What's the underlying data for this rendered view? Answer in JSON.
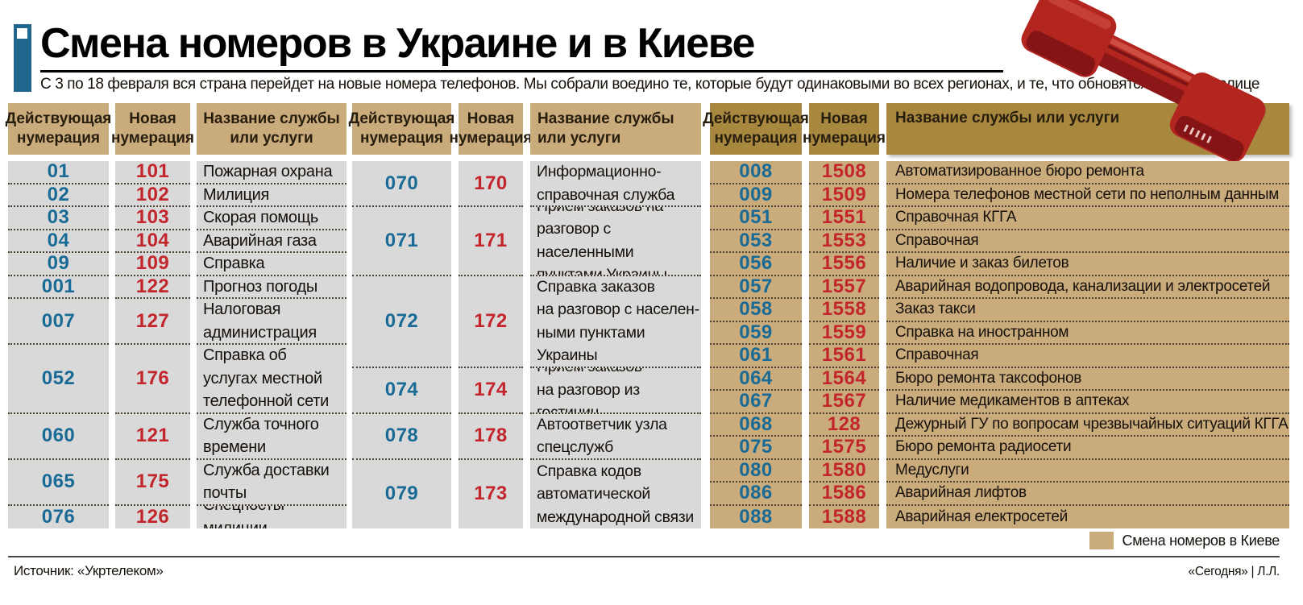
{
  "masthead": {
    "title": "Смена номеров в Украине и в Киеве",
    "subtitle": "С 3 по 18 февраля вся страна перейдет на новые номера телефонов. Мы собрали воедино те, которые будут одинаковыми во всех регионах, и те, что обновятся лишь в столице"
  },
  "column_headers": {
    "current": "Действующая\nнумерация",
    "new": "Новая\nнумерация",
    "service_two_line": "Название службы\nили услуги",
    "service": "Название службы или услуги"
  },
  "colors": {
    "accent_blue": "#1a6a96",
    "accent_red": "#c2262c",
    "tan": "#c9ab7c",
    "tan_dark": "#a8873f",
    "row_gray": "#d9d9d9",
    "marker_blue": "#20668f",
    "phone_red": "#b3251f"
  },
  "tables": [
    {
      "id": "ukraine-part-1",
      "rows": [
        {
          "old": "01",
          "new": "101",
          "service": "Пожарная охрана"
        },
        {
          "old": "02",
          "new": "102",
          "service": "Милиция"
        },
        {
          "old": "03",
          "new": "103",
          "service": "Скорая помощь"
        },
        {
          "old": "04",
          "new": "104",
          "service": "Аварийная газа"
        },
        {
          "old": "09",
          "new": "109",
          "service": "Справка"
        },
        {
          "old": "001",
          "new": "122",
          "service": "Прогноз погоды"
        },
        {
          "old": "007",
          "new": "127",
          "service": "Налоговая\nадминистрация"
        },
        {
          "old": "052",
          "new": "176",
          "service": "Справка об\nуслугах местной\nтелефонной сети"
        },
        {
          "old": "060",
          "new": "121",
          "service": "Служба точного\nвремени"
        },
        {
          "old": "065",
          "new": "175",
          "service": "Служба доставки\nпочты"
        },
        {
          "old": "076",
          "new": "126",
          "service": "Спецпосты милиции"
        }
      ]
    },
    {
      "id": "ukraine-part-2",
      "rows": [
        {
          "old": "070",
          "new": "170",
          "service": "Информационно-\nсправочная служба"
        },
        {
          "old": "071",
          "new": "171",
          "service": "Прием заказов на\nразговор с населенными\nпунктами Украины"
        },
        {
          "old": "072",
          "new": "172",
          "service": "Справка заказов\nна разговор с населен-\nными пунктами\nУкраины"
        },
        {
          "old": "074",
          "new": "174",
          "service": "Прием заказов\nна разговор из гостиниц"
        },
        {
          "old": "078",
          "new": "178",
          "service": "Автоответчик узла\nспецслужб"
        },
        {
          "old": "079",
          "new": "173",
          "service": "Справка кодов\nавтоматической\nмеждународной связи"
        }
      ]
    },
    {
      "id": "kyiv",
      "rows": [
        {
          "old": "008",
          "new": "1508",
          "service": "Автоматизированное бюро ремонта"
        },
        {
          "old": "009",
          "new": "1509",
          "service": "Номера телефонов местной сети по неполным данным"
        },
        {
          "old": "051",
          "new": "1551",
          "service": "Справочная КГГА"
        },
        {
          "old": "053",
          "new": "1553",
          "service": "Справочная"
        },
        {
          "old": "056",
          "new": "1556",
          "service": "Наличие и заказ билетов"
        },
        {
          "old": "057",
          "new": "1557",
          "service": "Аварийная водопровода, канализации и электросетей"
        },
        {
          "old": "058",
          "new": "1558",
          "service": "Заказ такси"
        },
        {
          "old": "059",
          "new": "1559",
          "service": "Справка на иностранном"
        },
        {
          "old": "061",
          "new": "1561",
          "service": "Справочная"
        },
        {
          "old": "064",
          "new": "1564",
          "service": "Бюро ремонта таксофонов"
        },
        {
          "old": "067",
          "new": "1567",
          "service": "Наличие медикаментов в аптеках"
        },
        {
          "old": "068",
          "new": "128",
          "service": "Дежурный ГУ по вопросам чрезвычайных ситуаций КГГА"
        },
        {
          "old": "075",
          "new": "1575",
          "service": "Бюро ремонта радиосети"
        },
        {
          "old": "080",
          "new": "1580",
          "service": "Медуслуги"
        },
        {
          "old": "086",
          "new": "1586",
          "service": "Аварийная лифтов"
        },
        {
          "old": "088",
          "new": "1588",
          "service": "Аварийная електросетей"
        }
      ]
    }
  ],
  "legend": {
    "label": "Смена номеров в Киеве"
  },
  "footer": {
    "source": "Источник: «Укртелеком»",
    "credit": "«Сегодня» | Л.Л."
  }
}
